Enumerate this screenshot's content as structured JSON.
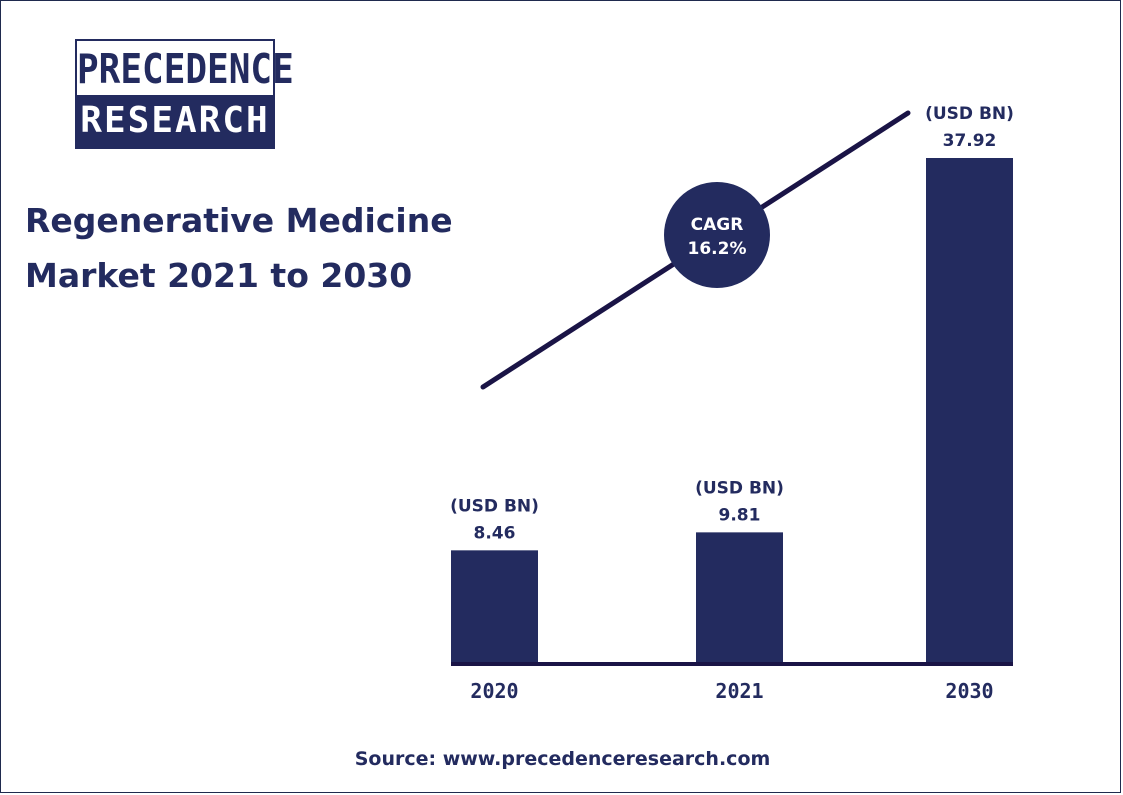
{
  "logo": {
    "line1": "PRECEDENCE",
    "line2": "RESEARCH"
  },
  "title": {
    "line1": "Regenerative Medicine",
    "line2": "Market 2021 to 2030"
  },
  "source": "Source: www.precedenceresearch.com",
  "colors": {
    "bar": "#232b5f",
    "text": "#232b5f",
    "axis": "#1a1446"
  },
  "chart_data": {
    "type": "bar",
    "categories": [
      "2020",
      "2021",
      "2030"
    ],
    "values": [
      8.46,
      9.81,
      37.92
    ],
    "unit_label": "(USD BN)",
    "value_labels": [
      "8.46",
      "9.81",
      "37.92"
    ],
    "annotation": {
      "line1": "CAGR",
      "line2": "16.2%"
    }
  }
}
